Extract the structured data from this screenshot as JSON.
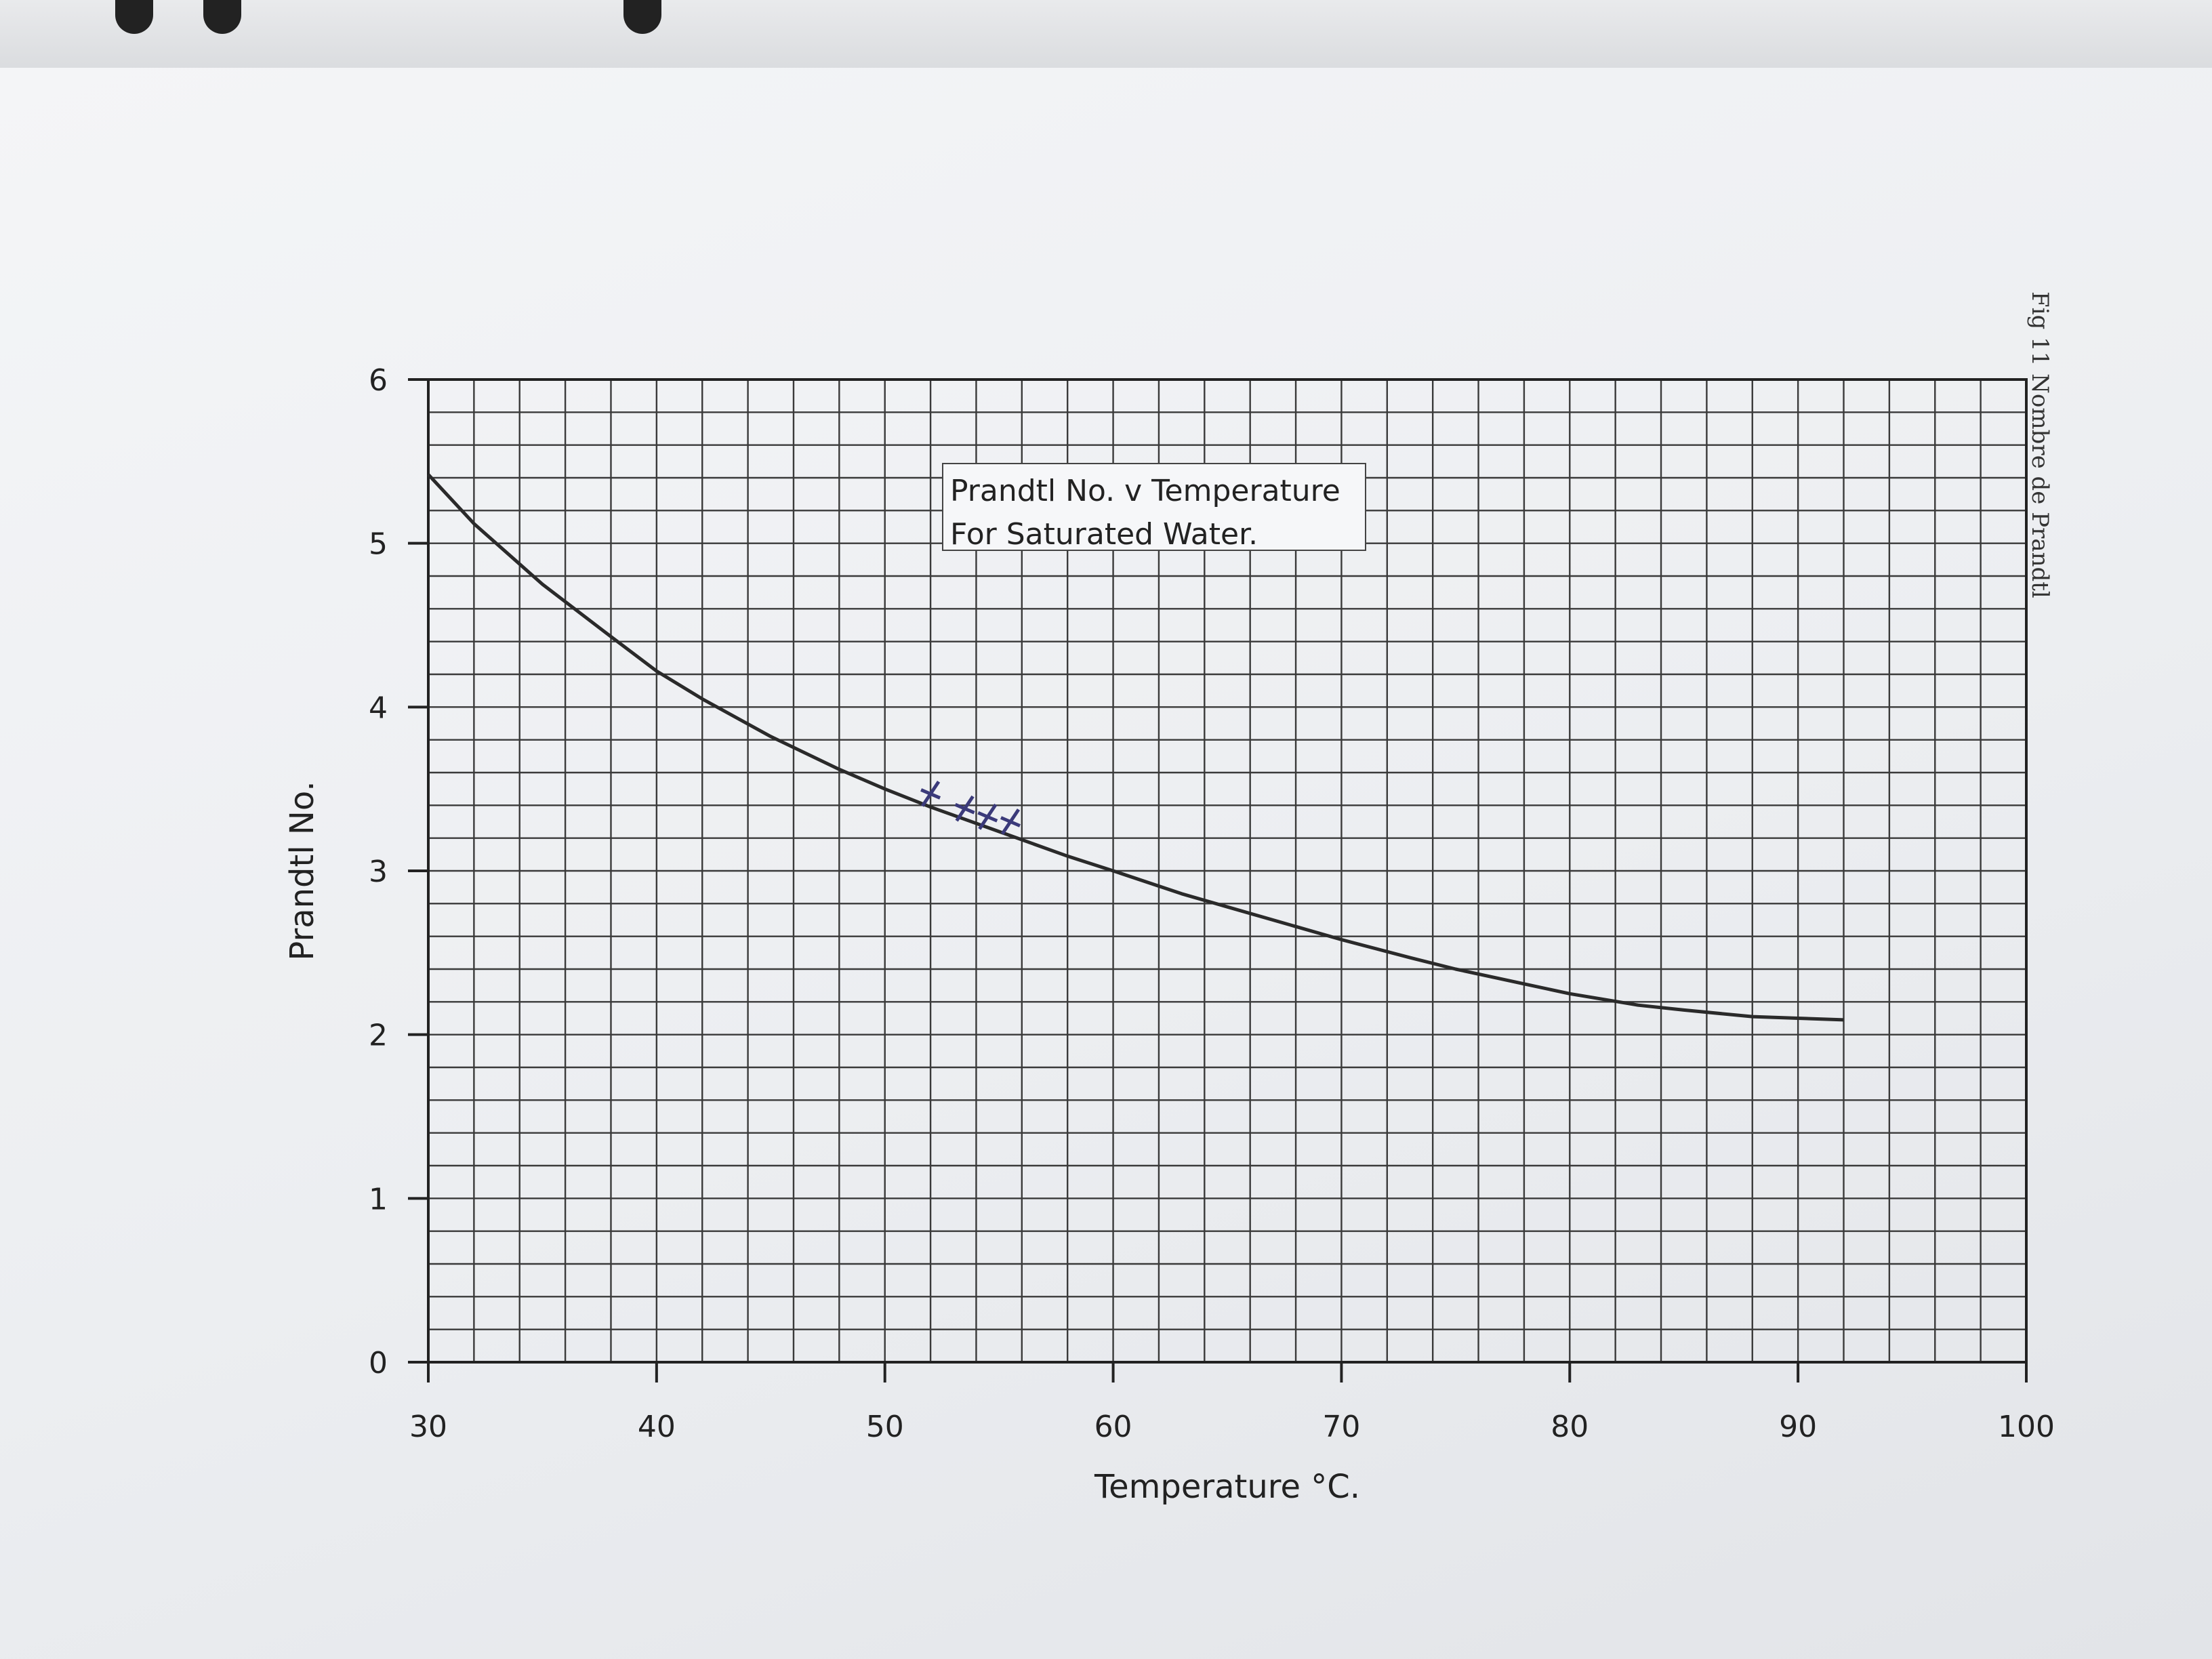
{
  "figure": {
    "caption": "Fig 11 Nombre de Prandtl"
  },
  "colors": {
    "line": "#2a2a2a",
    "grid": "#3a3a3a",
    "paper": "#f1f2f4",
    "ink_marks": "#3b3a7a"
  },
  "chart_data": {
    "type": "line",
    "title": "Prandtl No. v Temperature",
    "subtitle": "For Saturated Water.",
    "xlabel": "Temperature °C.",
    "ylabel": "Prandtl No.",
    "xlim": [
      30,
      100
    ],
    "ylim": [
      0,
      6
    ],
    "xticks": [
      "30",
      "40",
      "50",
      "60",
      "70",
      "80",
      "90",
      "100"
    ],
    "yticks": [
      "0",
      "1",
      "2",
      "3",
      "4",
      "5",
      "6"
    ],
    "grid": true,
    "legend": "none",
    "series": [
      {
        "x": [
          30,
          32,
          35,
          38,
          40,
          42,
          45,
          48,
          50,
          52,
          55,
          58,
          60,
          63,
          65,
          68,
          70,
          73,
          75,
          78,
          80,
          83,
          85,
          88,
          90,
          92
        ],
        "y": [
          5.42,
          5.12,
          4.75,
          4.43,
          4.22,
          4.05,
          3.82,
          3.62,
          3.5,
          3.39,
          3.24,
          3.09,
          3.0,
          2.86,
          2.78,
          2.66,
          2.58,
          2.47,
          2.4,
          2.31,
          2.25,
          2.18,
          2.15,
          2.11,
          2.1,
          2.09
        ]
      }
    ],
    "annotations": [
      {
        "type": "handwritten-mark",
        "x": 52,
        "y": 3.47
      },
      {
        "type": "handwritten-mark",
        "x": 53.5,
        "y": 3.38
      },
      {
        "type": "handwritten-mark",
        "x": 54.5,
        "y": 3.33
      },
      {
        "type": "handwritten-mark",
        "x": 55.5,
        "y": 3.3
      }
    ]
  }
}
